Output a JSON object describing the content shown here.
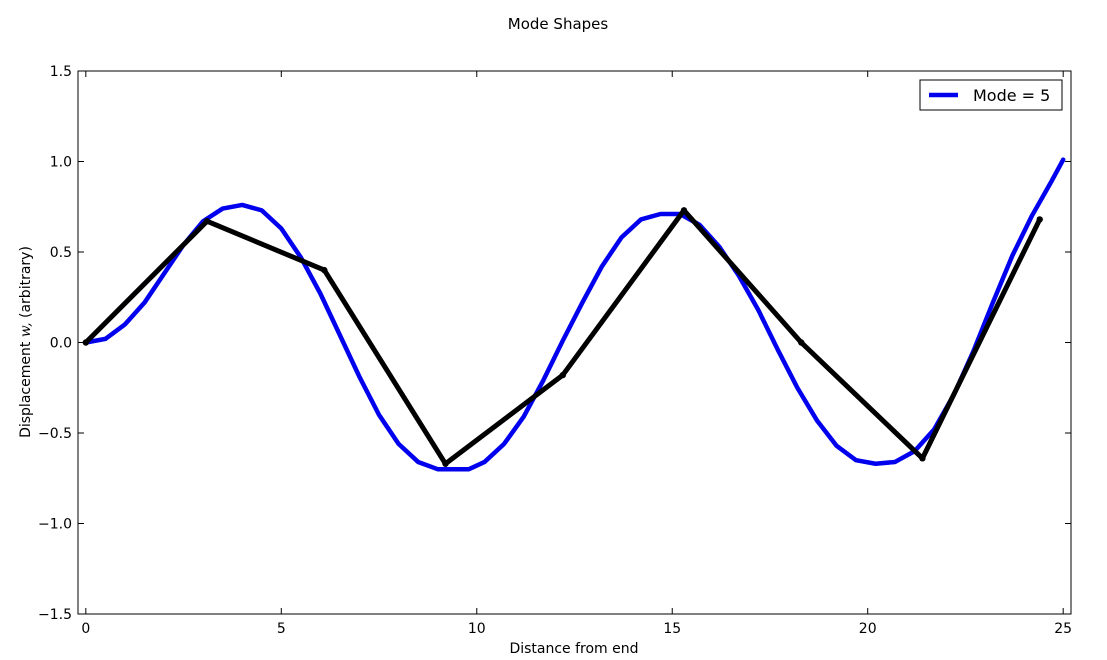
{
  "chart_data": {
    "type": "line",
    "title": "Mode Shapes",
    "xlabel": "Distance from end",
    "ylabel_prefix": "Displacement ",
    "ylabel_symbol": "w,",
    "ylabel_suffix": " (arbitrary)",
    "xlim": [
      -0.2,
      25.2
    ],
    "ylim": [
      -1.5,
      1.5
    ],
    "x_ticks": [
      0,
      5,
      10,
      15,
      20,
      25
    ],
    "x_tick_labels": [
      "0",
      "5",
      "10",
      "15",
      "20",
      "25"
    ],
    "y_ticks": [
      -1.5,
      -1.0,
      -0.5,
      0.0,
      0.5,
      1.0,
      1.5
    ],
    "y_tick_labels": [
      "−1.5",
      "−1.0",
      "−0.5",
      "0.0",
      "0.5",
      "1.0",
      "1.5"
    ],
    "grid": false,
    "legend": {
      "position": "top-right",
      "entries": [
        "Mode = 5"
      ]
    },
    "series": [
      {
        "name": "Mode = 5",
        "color": "#0000ee",
        "x": [
          0,
          0.5,
          1,
          1.5,
          2,
          2.5,
          3,
          3.5,
          4,
          4.5,
          5,
          5.5,
          6,
          6.5,
          7,
          7.5,
          8,
          8.5,
          9,
          9.5,
          9.8,
          10.2,
          10.7,
          11.2,
          11.7,
          12.2,
          12.7,
          13.2,
          13.7,
          14.2,
          14.7,
          15.2,
          15.7,
          16.2,
          16.7,
          17.2,
          17.7,
          18.2,
          18.7,
          19.2,
          19.7,
          20.2,
          20.7,
          21.2,
          21.7,
          22.2,
          22.7,
          23.2,
          23.7,
          24.2,
          24.7,
          25
        ],
        "y": [
          0.0,
          0.02,
          0.1,
          0.22,
          0.38,
          0.54,
          0.67,
          0.74,
          0.76,
          0.73,
          0.63,
          0.47,
          0.27,
          0.04,
          -0.19,
          -0.4,
          -0.56,
          -0.66,
          -0.7,
          -0.7,
          -0.7,
          -0.66,
          -0.56,
          -0.41,
          -0.21,
          0.01,
          0.22,
          0.42,
          0.58,
          0.68,
          0.71,
          0.71,
          0.65,
          0.53,
          0.37,
          0.18,
          -0.04,
          -0.25,
          -0.43,
          -0.57,
          -0.65,
          -0.67,
          -0.66,
          -0.6,
          -0.48,
          -0.29,
          -0.05,
          0.22,
          0.48,
          0.7,
          0.89,
          1.01
        ]
      },
      {
        "color": "#000000",
        "x": [
          0,
          3.1,
          6.1,
          9.2,
          12.2,
          15.3,
          18.3,
          21.4,
          24.4
        ],
        "y": [
          0.0,
          0.67,
          0.4,
          -0.67,
          -0.18,
          0.73,
          0.0,
          -0.64,
          0.68
        ]
      }
    ]
  }
}
